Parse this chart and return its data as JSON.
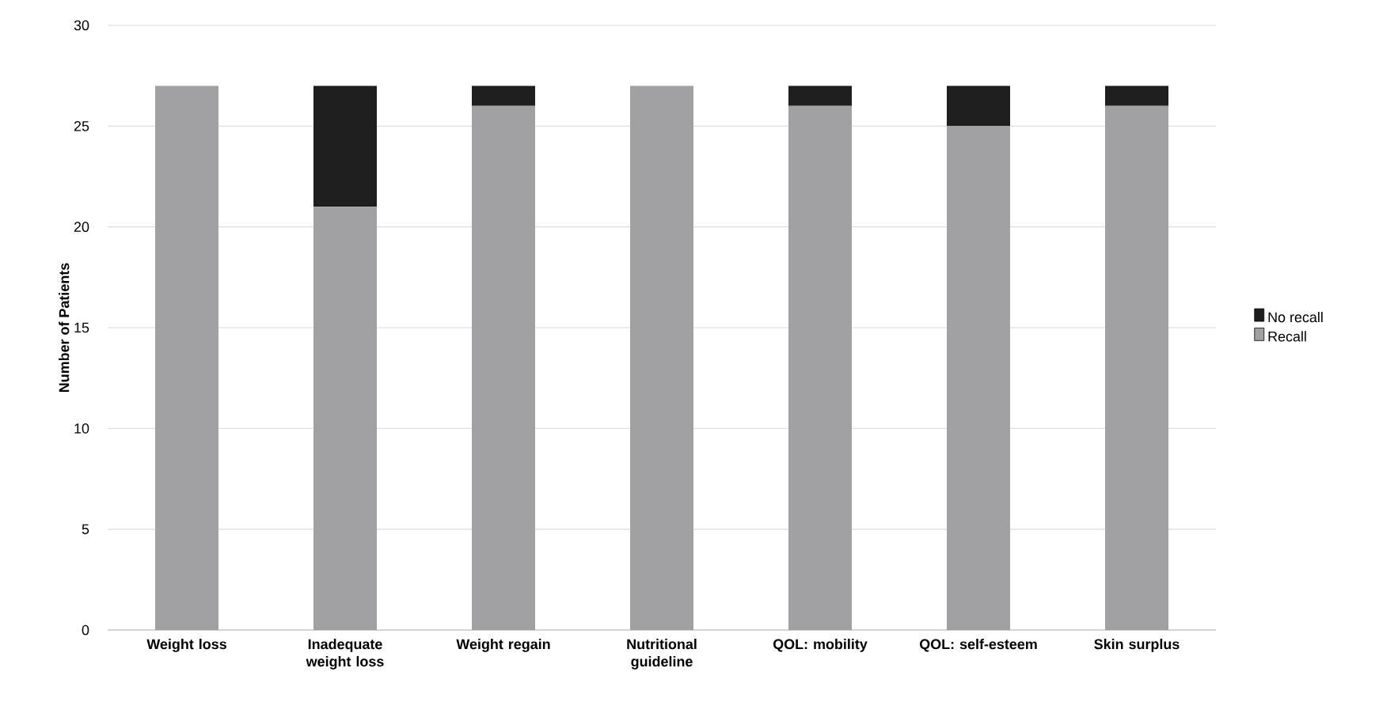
{
  "chart_data": {
    "type": "bar",
    "stacked": true,
    "ylabel": "Number of Patients",
    "categories": [
      "Weight loss",
      "Inadequate weight loss",
      "Weight regain",
      "Nutritional guideline",
      "QOL: mobility",
      "QOL: self-esteem",
      "Skin surplus"
    ],
    "series": [
      {
        "name": "Recall",
        "color": "#a0a0a2",
        "values": [
          27,
          21,
          26,
          27,
          26,
          25,
          26
        ]
      },
      {
        "name": "No recall",
        "color": "#1e1e1e",
        "values": [
          0,
          6,
          1,
          0,
          1,
          2,
          1
        ]
      }
    ],
    "ylim": [
      0,
      30
    ],
    "yticks": [
      0,
      5,
      10,
      15,
      20,
      25,
      30
    ],
    "grid": "y",
    "legend": "right"
  }
}
